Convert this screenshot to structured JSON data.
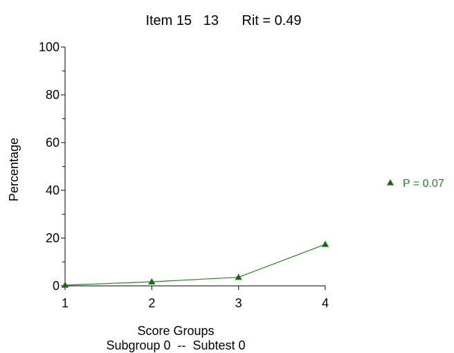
{
  "chart_data": {
    "type": "line",
    "title": "Item 15   13      Rit = 0.49",
    "xlabel": "Score Groups",
    "subtitle": "Subgroup 0  --  Subtest 0",
    "ylabel": "Percentage",
    "x": [
      1,
      2,
      3,
      4
    ],
    "xlim": [
      1,
      4
    ],
    "ylim": [
      0,
      100
    ],
    "yticks": [
      0,
      20,
      40,
      60,
      80,
      100
    ],
    "xticks": [
      1,
      2,
      3,
      4
    ],
    "grid": false,
    "legend_position": "right",
    "series": [
      {
        "name": "P = 0.07",
        "values": [
          0.3,
          1.7,
          3.6,
          17.4
        ],
        "color": "#1a8a1a",
        "marker": "triangle"
      }
    ]
  },
  "colors": {
    "axis": "#000000",
    "series": "#1a8a1a"
  }
}
